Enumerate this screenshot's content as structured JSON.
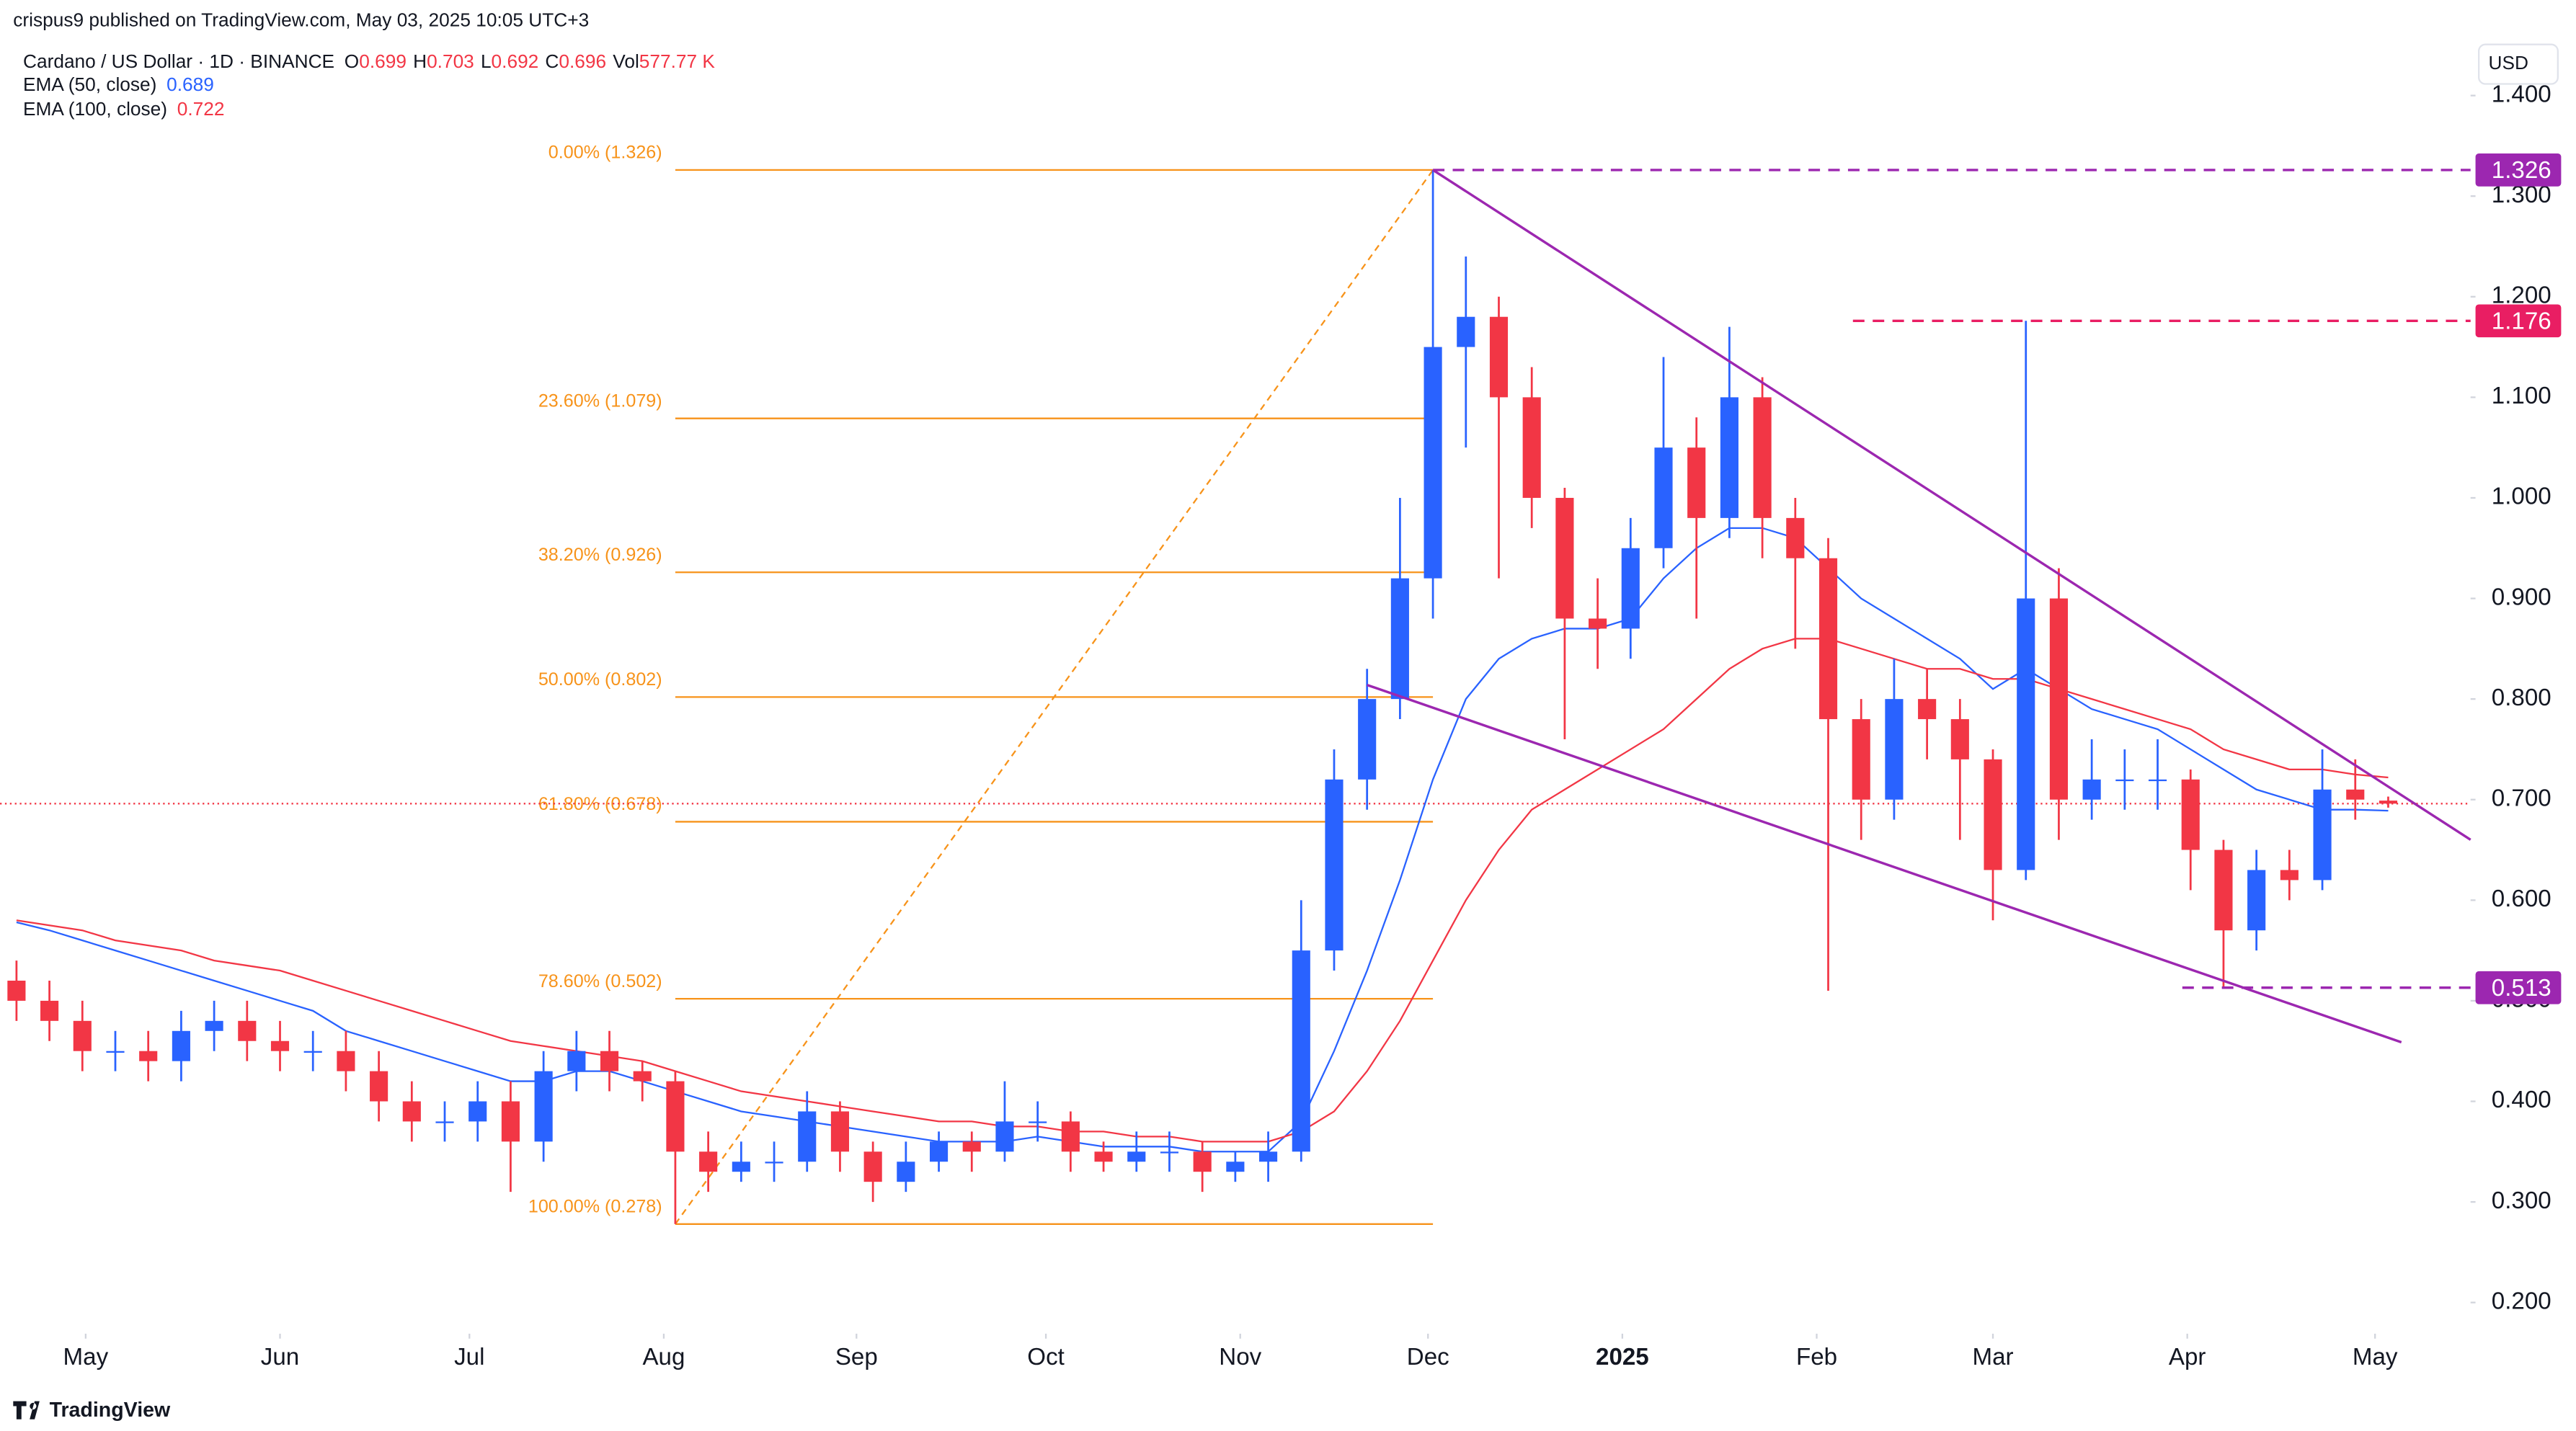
{
  "header": {
    "published": "crispus9 published on TradingView.com, May 03, 2025 10:05 UTC+3",
    "symbol": "Cardano / US Dollar · 1D · BINANCE",
    "ohlc_labels": [
      "O",
      "H",
      "L",
      "C"
    ],
    "vol_label": "Vol",
    "volume": "577.77 K",
    "currency": "USD",
    "brand": "TradingView"
  },
  "chart_data": {
    "type": "candlestick",
    "up_color": "#2962ff",
    "down_color": "#f23645",
    "categories": [
      null,
      null,
      null,
      null,
      null,
      null,
      null,
      null,
      null,
      null,
      null,
      null,
      null,
      null,
      null,
      null,
      null,
      null,
      null,
      null,
      null,
      null,
      null,
      null,
      null,
      null,
      null,
      null,
      null,
      null,
      null,
      null,
      null,
      null,
      null,
      null,
      null,
      null,
      null,
      null,
      null,
      null,
      null,
      null,
      null,
      null,
      null,
      null,
      null,
      null,
      null,
      null,
      null,
      null,
      null,
      null,
      null,
      null,
      null,
      null,
      null,
      null,
      null,
      null,
      null,
      null,
      null,
      null,
      null,
      null,
      null,
      null,
      null
    ],
    "open": [
      0.52,
      0.5,
      0.48,
      0.45,
      0.45,
      0.44,
      0.47,
      0.48,
      0.46,
      0.45,
      0.45,
      0.43,
      0.4,
      0.38,
      0.38,
      0.4,
      0.36,
      0.43,
      0.45,
      0.43,
      0.42,
      0.35,
      0.33,
      0.34,
      0.34,
      0.39,
      0.35,
      0.32,
      0.34,
      0.36,
      0.35,
      0.38,
      0.38,
      0.35,
      0.34,
      0.35,
      0.35,
      0.33,
      0.34,
      0.35,
      0.55,
      0.72,
      0.8,
      0.92,
      1.15,
      1.18,
      1.1,
      1.0,
      0.88,
      0.87,
      0.95,
      1.05,
      0.98,
      1.1,
      0.98,
      0.94,
      0.78,
      0.7,
      0.8,
      0.78,
      0.74,
      0.63,
      0.9,
      0.7,
      0.72,
      0.72,
      0.72,
      0.65,
      0.57,
      0.63,
      0.62,
      0.71,
      0.699
    ],
    "high": [
      0.54,
      0.52,
      0.5,
      0.47,
      0.47,
      0.49,
      0.5,
      0.5,
      0.48,
      0.47,
      0.47,
      0.45,
      0.42,
      0.4,
      0.42,
      0.42,
      0.45,
      0.47,
      0.47,
      0.44,
      0.43,
      0.37,
      0.36,
      0.36,
      0.41,
      0.4,
      0.36,
      0.36,
      0.37,
      0.37,
      0.42,
      0.4,
      0.39,
      0.36,
      0.37,
      0.37,
      0.36,
      0.35,
      0.37,
      0.6,
      0.75,
      0.83,
      1.0,
      1.326,
      1.24,
      1.2,
      1.13,
      1.01,
      0.92,
      0.98,
      1.14,
      1.08,
      1.17,
      1.12,
      1.0,
      0.96,
      0.8,
      0.84,
      0.83,
      0.8,
      0.75,
      1.176,
      0.93,
      0.76,
      0.75,
      0.76,
      0.73,
      0.66,
      0.65,
      0.65,
      0.75,
      0.74,
      0.703
    ],
    "low": [
      0.48,
      0.46,
      0.43,
      0.43,
      0.42,
      0.42,
      0.45,
      0.44,
      0.43,
      0.43,
      0.41,
      0.38,
      0.36,
      0.36,
      0.36,
      0.31,
      0.34,
      0.41,
      0.41,
      0.4,
      0.278,
      0.31,
      0.32,
      0.32,
      0.33,
      0.33,
      0.3,
      0.31,
      0.33,
      0.33,
      0.34,
      0.36,
      0.33,
      0.33,
      0.33,
      0.33,
      0.31,
      0.32,
      0.32,
      0.34,
      0.53,
      0.69,
      0.78,
      0.88,
      1.05,
      0.92,
      0.97,
      0.76,
      0.83,
      0.84,
      0.93,
      0.88,
      0.96,
      0.94,
      0.85,
      0.51,
      0.66,
      0.68,
      0.74,
      0.66,
      0.58,
      0.62,
      0.66,
      0.68,
      0.69,
      0.69,
      0.61,
      0.513,
      0.55,
      0.6,
      0.61,
      0.68,
      0.692
    ],
    "close": [
      0.5,
      0.48,
      0.45,
      0.45,
      0.44,
      0.47,
      0.48,
      0.46,
      0.45,
      0.45,
      0.43,
      0.4,
      0.38,
      0.38,
      0.4,
      0.36,
      0.43,
      0.45,
      0.43,
      0.42,
      0.35,
      0.33,
      0.34,
      0.34,
      0.39,
      0.35,
      0.32,
      0.34,
      0.36,
      0.35,
      0.38,
      0.38,
      0.35,
      0.34,
      0.35,
      0.35,
      0.33,
      0.34,
      0.35,
      0.55,
      0.72,
      0.8,
      0.92,
      1.15,
      1.18,
      1.1,
      1.0,
      0.88,
      0.87,
      0.95,
      1.05,
      0.98,
      1.1,
      0.98,
      0.94,
      0.78,
      0.7,
      0.8,
      0.78,
      0.74,
      0.63,
      0.9,
      0.7,
      0.72,
      0.72,
      0.72,
      0.65,
      0.57,
      0.63,
      0.62,
      0.71,
      0.7,
      0.696
    ],
    "series": [
      {
        "name": "EMA (50, close)",
        "color": "#2962ff",
        "values": [
          0.578,
          0.57,
          0.56,
          0.55,
          0.54,
          0.53,
          0.52,
          0.51,
          0.5,
          0.49,
          0.47,
          0.46,
          0.45,
          0.44,
          0.43,
          0.42,
          0.42,
          0.43,
          0.43,
          0.42,
          0.41,
          0.4,
          0.39,
          0.385,
          0.38,
          0.375,
          0.37,
          0.365,
          0.36,
          0.36,
          0.36,
          0.365,
          0.36,
          0.355,
          0.355,
          0.355,
          0.35,
          0.35,
          0.35,
          0.38,
          0.45,
          0.53,
          0.62,
          0.72,
          0.8,
          0.84,
          0.86,
          0.87,
          0.87,
          0.88,
          0.92,
          0.95,
          0.97,
          0.97,
          0.96,
          0.93,
          0.9,
          0.88,
          0.86,
          0.84,
          0.81,
          0.83,
          0.81,
          0.79,
          0.78,
          0.77,
          0.75,
          0.73,
          0.71,
          0.7,
          0.69,
          0.69,
          0.689
        ]
      },
      {
        "name": "EMA (100, close)",
        "color": "#f23645",
        "values": [
          0.58,
          0.575,
          0.57,
          0.56,
          0.555,
          0.55,
          0.54,
          0.535,
          0.53,
          0.52,
          0.51,
          0.5,
          0.49,
          0.48,
          0.47,
          0.46,
          0.455,
          0.45,
          0.445,
          0.44,
          0.43,
          0.42,
          0.41,
          0.405,
          0.4,
          0.395,
          0.39,
          0.385,
          0.38,
          0.38,
          0.375,
          0.375,
          0.37,
          0.37,
          0.365,
          0.365,
          0.36,
          0.36,
          0.36,
          0.37,
          0.39,
          0.43,
          0.48,
          0.54,
          0.6,
          0.65,
          0.69,
          0.71,
          0.73,
          0.75,
          0.77,
          0.8,
          0.83,
          0.85,
          0.86,
          0.86,
          0.85,
          0.84,
          0.83,
          0.83,
          0.82,
          0.82,
          0.81,
          0.8,
          0.79,
          0.78,
          0.77,
          0.75,
          0.74,
          0.73,
          0.73,
          0.725,
          0.722
        ]
      }
    ],
    "xlim": [
      -0.5,
      74.5
    ],
    "xticks": [
      {
        "value": 2.1,
        "label": "May"
      },
      {
        "value": 8,
        "label": "Jun"
      },
      {
        "value": 13.75,
        "label": "Jul"
      },
      {
        "value": 19.65,
        "label": "Aug"
      },
      {
        "value": 25.5,
        "label": "Sep"
      },
      {
        "value": 31.25,
        "label": "Oct"
      },
      {
        "value": 37.15,
        "label": "Nov"
      },
      {
        "value": 42.85,
        "label": "Dec"
      },
      {
        "value": 48.75,
        "label": "2025"
      },
      {
        "value": 54.65,
        "label": "Feb"
      },
      {
        "value": 60,
        "label": "Mar"
      },
      {
        "value": 65.9,
        "label": "Apr"
      },
      {
        "value": 71.6,
        "label": "May"
      }
    ],
    "ylim": [
      0.169,
      1.495
    ],
    "yticks": [
      {
        "value": 0.2,
        "label": "0.200"
      },
      {
        "value": 0.3,
        "label": "0.300"
      },
      {
        "value": 0.4,
        "label": "0.400"
      },
      {
        "value": 0.5,
        "label": "0.500"
      },
      {
        "value": 0.6,
        "label": "0.600"
      },
      {
        "value": 0.7,
        "label": "0.700"
      },
      {
        "value": 0.8,
        "label": "0.800"
      },
      {
        "value": 0.9,
        "label": "0.900"
      },
      {
        "value": 1.0,
        "label": "1.000"
      },
      {
        "value": 1.1,
        "label": "1.100"
      },
      {
        "value": 1.2,
        "label": "1.200"
      },
      {
        "value": 1.3,
        "label": "1.300"
      },
      {
        "value": 1.4,
        "label": "1.400"
      }
    ],
    "fib_color": "#f7931a",
    "fib_levels": [
      {
        "label": "0.00% (1.326)",
        "value": 1.326
      },
      {
        "label": "23.60% (1.079)",
        "value": 1.079
      },
      {
        "label": "38.20% (0.926)",
        "value": 0.926
      },
      {
        "label": "50.00% (0.802)",
        "value": 0.802
      },
      {
        "label": "61.80% (0.678)",
        "value": 0.678
      },
      {
        "label": "78.60% (0.502)",
        "value": 0.502
      },
      {
        "label": "100.00% (0.278)",
        "value": 0.278
      }
    ],
    "price_lines": [
      {
        "value": 1.326,
        "color": "#9c27b0"
      },
      {
        "value": 1.176,
        "color": "#e91e63"
      },
      {
        "value": 0.513,
        "color": "#9c27b0"
      }
    ],
    "trend_color": "#9c27b0"
  }
}
